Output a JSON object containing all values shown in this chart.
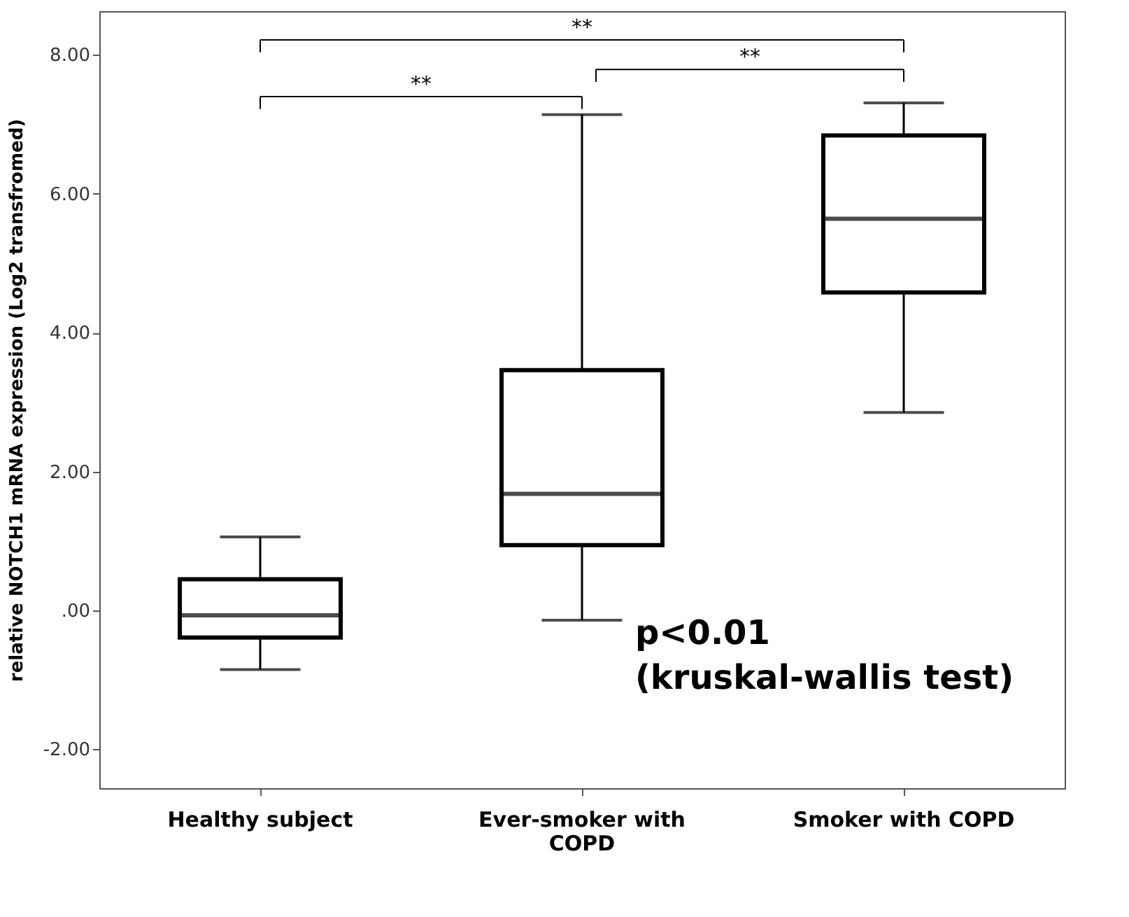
{
  "chart_data": {
    "type": "box",
    "ylabel": "relative NOTCH1 mRNA expression (Log2 transfromed)",
    "categories": [
      "Healthy subject",
      "Ever-smoker with COPD",
      "Smoker with COPD"
    ],
    "boxes": [
      {
        "low": -0.85,
        "q1": -0.39,
        "median": -0.07,
        "q3": 0.45,
        "high": 1.06
      },
      {
        "low": -0.14,
        "q1": 0.94,
        "median": 1.68,
        "q3": 3.46,
        "high": 7.14
      },
      {
        "low": 2.85,
        "q1": 4.58,
        "median": 5.64,
        "q3": 6.84,
        "high": 7.31
      }
    ],
    "color": "#ffffff",
    "ylim": [
      -2.56,
      8.63
    ],
    "yticks": [
      {
        "value": -2,
        "label": "-2.00"
      },
      {
        "value": 0,
        "label": ".00"
      },
      {
        "value": 2,
        "label": "2.00"
      },
      {
        "value": 4,
        "label": "4.00"
      },
      {
        "value": 6,
        "label": "6.00"
      },
      {
        "value": 8,
        "label": "8.00"
      }
    ],
    "grid": false,
    "annotations": [
      "**",
      "**",
      "**",
      "p<0.01",
      "(kruskal-wallis test)"
    ]
  }
}
